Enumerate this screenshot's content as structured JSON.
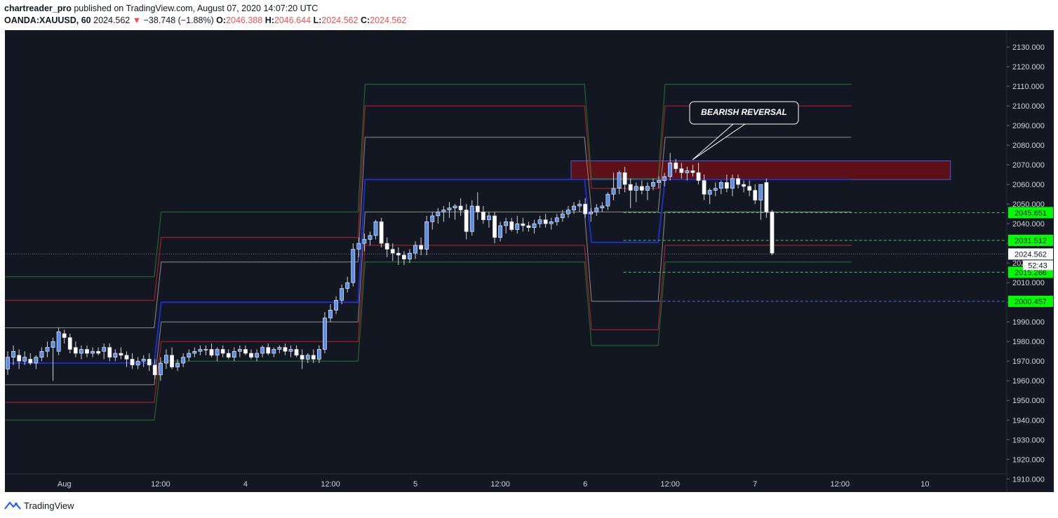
{
  "header": {
    "author": "chartreader_pro",
    "published_text": "published on TradingView.com, August 07, 2020 14:07:20 UTC",
    "symbol": "OANDA:XAUUSD, 60",
    "last": "2024.562",
    "change": "−38.748 (−1.88%)",
    "o_label": "O:",
    "o_val": "2046.388",
    "h_label": "H:",
    "h_val": "2046.644",
    "l_label": "L:",
    "l_val": "2024.562",
    "c_label": "C:",
    "c_val": "2024.562"
  },
  "footer": {
    "brand": "TradingView"
  },
  "colors": {
    "background": "#131722",
    "up": "#5b8ee6",
    "down": "#ffffff",
    "pivot": "#1e2fd6",
    "r_red": "#c0202a",
    "r_gray": "#8c8c8c",
    "r_green": "#1f7a2a",
    "zone": "#6a1018",
    "price_label": "#00ff00"
  },
  "chart_data": {
    "type": "candlestick",
    "ylim": [
      1907,
      2133
    ],
    "y_ticks": [
      "1910.000",
      "1920.000",
      "1930.000",
      "1940.000",
      "1950.000",
      "1960.000",
      "1970.000",
      "1980.000",
      "1990.000",
      "2000.000",
      "2010.000",
      "2020.000",
      "2030.000",
      "2040.000",
      "2050.000",
      "2060.000",
      "2070.000",
      "2080.000",
      "2090.000",
      "2100.000",
      "2110.000",
      "2120.000",
      "2130.000"
    ],
    "x_ticks": [
      {
        "label": "Aug",
        "bar": 10
      },
      {
        "label": "12:00",
        "bar": 27
      },
      {
        "label": "4",
        "bar": 42
      },
      {
        "label": "12:00",
        "bar": 57
      },
      {
        "label": "5",
        "bar": 72
      },
      {
        "label": "12:00",
        "bar": 87
      },
      {
        "label": "6",
        "bar": 102
      },
      {
        "label": "12:00",
        "bar": 117
      },
      {
        "label": "7",
        "bar": 132
      },
      {
        "label": "12:00",
        "bar": 147
      },
      {
        "label": "10",
        "bar": 162
      }
    ],
    "ohlc": [
      [
        1966,
        1975,
        1963,
        1972
      ],
      [
        1972,
        1978,
        1968,
        1975
      ],
      [
        1973,
        1976,
        1966,
        1970
      ],
      [
        1970,
        1975,
        1968,
        1972
      ],
      [
        1971,
        1974,
        1968,
        1969
      ],
      [
        1969,
        1973,
        1966,
        1972
      ],
      [
        1972,
        1977,
        1970,
        1975
      ],
      [
        1975,
        1980,
        1972,
        1977
      ],
      [
        1977,
        1982,
        1960,
        1980
      ],
      [
        1975,
        1987,
        1973,
        1985
      ],
      [
        1984,
        1986,
        1979,
        1982
      ],
      [
        1982,
        1984,
        1974,
        1976
      ],
      [
        1977,
        1980,
        1972,
        1974
      ],
      [
        1974,
        1978,
        1971,
        1976
      ],
      [
        1976,
        1978,
        1972,
        1974
      ],
      [
        1974,
        1977,
        1972,
        1975
      ],
      [
        1975,
        1977,
        1973,
        1974
      ],
      [
        1975,
        1979,
        1971,
        1977
      ],
      [
        1977,
        1979,
        1970,
        1972
      ],
      [
        1972,
        1976,
        1970,
        1974
      ],
      [
        1974,
        1977,
        1971,
        1973
      ],
      [
        1973,
        1975,
        1967,
        1971
      ],
      [
        1971,
        1974,
        1966,
        1968
      ],
      [
        1968,
        1972,
        1966,
        1970
      ],
      [
        1970,
        1973,
        1967,
        1971
      ],
      [
        1971,
        1974,
        1965,
        1968
      ],
      [
        1968,
        1971,
        1961,
        1963
      ],
      [
        1963,
        1972,
        1960,
        1969
      ],
      [
        1969,
        1976,
        1966,
        1973
      ],
      [
        1973,
        1977,
        1966,
        1967
      ],
      [
        1967,
        1971,
        1965,
        1969
      ],
      [
        1969,
        1974,
        1967,
        1972
      ],
      [
        1972,
        1976,
        1970,
        1974
      ],
      [
        1974,
        1977,
        1972,
        1975
      ],
      [
        1975,
        1978,
        1973,
        1976
      ],
      [
        1976,
        1978,
        1973,
        1976
      ],
      [
        1976,
        1979,
        1972,
        1973
      ],
      [
        1973,
        1977,
        1970,
        1976
      ],
      [
        1976,
        1978,
        1972,
        1974
      ],
      [
        1974,
        1976,
        1971,
        1972
      ],
      [
        1972,
        1977,
        1970,
        1975
      ],
      [
        1975,
        1978,
        1972,
        1976
      ],
      [
        1976,
        1978,
        1973,
        1974
      ],
      [
        1974,
        1976,
        1971,
        1972
      ],
      [
        1972,
        1976,
        1970,
        1974
      ],
      [
        1974,
        1978,
        1972,
        1977
      ],
      [
        1977,
        1979,
        1973,
        1974
      ],
      [
        1974,
        1977,
        1972,
        1976
      ],
      [
        1976,
        1978,
        1974,
        1977
      ],
      [
        1977,
        1979,
        1973,
        1975
      ],
      [
        1975,
        1978,
        1972,
        1976
      ],
      [
        1976,
        1978,
        1972,
        1973
      ],
      [
        1973,
        1976,
        1966,
        1971
      ],
      [
        1971,
        1974,
        1969,
        1973
      ],
      [
        1973,
        1976,
        1969,
        1971
      ],
      [
        1971,
        1978,
        1969,
        1976
      ],
      [
        1976,
        1995,
        1974,
        1992
      ],
      [
        1992,
        1999,
        1990,
        1996
      ],
      [
        1996,
        2003,
        1994,
        2001
      ],
      [
        2001,
        2009,
        1999,
        2007
      ],
      [
        2007,
        2013,
        2005,
        2010
      ],
      [
        2010,
        2030,
        2008,
        2027
      ],
      [
        2027,
        2033,
        2023,
        2030
      ],
      [
        2030,
        2035,
        2026,
        2032
      ],
      [
        2032,
        2036,
        2029,
        2034
      ],
      [
        2034,
        2042,
        2032,
        2041
      ],
      [
        2041,
        2043,
        2028,
        2030
      ],
      [
        2030,
        2033,
        2023,
        2027
      ],
      [
        2027,
        2030,
        2021,
        2025
      ],
      [
        2025,
        2028,
        2019,
        2024
      ],
      [
        2024,
        2026,
        2019,
        2022
      ],
      [
        2022,
        2027,
        2020,
        2025
      ],
      [
        2025,
        2031,
        2022,
        2029
      ],
      [
        2029,
        2033,
        2024,
        2027
      ],
      [
        2027,
        2044,
        2024,
        2041
      ],
      [
        2041,
        2046,
        2037,
        2044
      ],
      [
        2044,
        2048,
        2040,
        2046
      ],
      [
        2046,
        2049,
        2041,
        2047
      ],
      [
        2047,
        2051,
        2043,
        2048
      ],
      [
        2048,
        2050,
        2042,
        2049
      ],
      [
        2049,
        2053,
        2044,
        2047
      ],
      [
        2047,
        2050,
        2032,
        2036
      ],
      [
        2036,
        2052,
        2034,
        2049
      ],
      [
        2049,
        2056,
        2042,
        2046
      ],
      [
        2046,
        2049,
        2040,
        2042
      ],
      [
        2042,
        2046,
        2038,
        2044
      ],
      [
        2044,
        2046,
        2030,
        2033
      ],
      [
        2033,
        2041,
        2031,
        2039
      ],
      [
        2039,
        2043,
        2035,
        2041
      ],
      [
        2041,
        2043,
        2036,
        2037
      ],
      [
        2037,
        2044,
        2035,
        2040
      ],
      [
        2040,
        2043,
        2036,
        2039
      ],
      [
        2039,
        2041,
        2036,
        2038
      ],
      [
        2038,
        2042,
        2035,
        2040
      ],
      [
        2040,
        2044,
        2038,
        2042
      ],
      [
        2042,
        2045,
        2038,
        2040
      ],
      [
        2040,
        2043,
        2037,
        2041
      ],
      [
        2041,
        2045,
        2039,
        2043
      ],
      [
        2043,
        2047,
        2041,
        2045
      ],
      [
        2045,
        2049,
        2043,
        2047
      ],
      [
        2047,
        2051,
        2045,
        2049
      ],
      [
        2049,
        2052,
        2046,
        2050
      ],
      [
        2050,
        2053,
        2043,
        2045
      ],
      [
        2045,
        2048,
        2041,
        2046
      ],
      [
        2046,
        2050,
        2044,
        2048
      ],
      [
        2048,
        2051,
        2046,
        2049
      ],
      [
        2049,
        2056,
        2047,
        2055
      ],
      [
        2055,
        2066,
        2052,
        2058
      ],
      [
        2058,
        2067,
        2055,
        2066
      ],
      [
        2066,
        2069,
        2056,
        2060
      ],
      [
        2060,
        2063,
        2048,
        2057
      ],
      [
        2057,
        2061,
        2051,
        2059
      ],
      [
        2059,
        2062,
        2055,
        2057
      ],
      [
        2057,
        2061,
        2052,
        2059
      ],
      [
        2059,
        2063,
        2057,
        2061
      ],
      [
        2061,
        2064,
        2058,
        2062
      ],
      [
        2062,
        2066,
        2059,
        2064
      ],
      [
        2064,
        2076,
        2062,
        2071
      ],
      [
        2071,
        2073,
        2066,
        2068
      ],
      [
        2068,
        2071,
        2063,
        2066
      ],
      [
        2066,
        2069,
        2062,
        2067
      ],
      [
        2067,
        2070,
        2064,
        2066
      ],
      [
        2066,
        2071,
        2060,
        2062
      ],
      [
        2062,
        2065,
        2052,
        2055
      ],
      [
        2055,
        2058,
        2050,
        2057
      ],
      [
        2057,
        2061,
        2054,
        2058
      ],
      [
        2058,
        2062,
        2055,
        2061
      ],
      [
        2061,
        2065,
        2056,
        2058
      ],
      [
        2058,
        2065,
        2054,
        2063
      ],
      [
        2063,
        2065,
        2058,
        2060
      ],
      [
        2060,
        2062,
        2056,
        2059
      ],
      [
        2059,
        2062,
        2054,
        2057
      ],
      [
        2057,
        2060,
        2050,
        2052
      ],
      [
        2052,
        2060,
        2042,
        2060
      ],
      [
        2061,
        2063,
        2043,
        2046
      ],
      [
        2046,
        2047,
        2024,
        2025
      ]
    ],
    "pivot_levels": {
      "breaks": [
        0,
        26,
        62,
        102,
        115
      ],
      "P": [
        1969,
        2000,
        2062.5,
        2030.5,
        2062.5
      ],
      "R1": [
        1987,
        2020.5,
        2084,
        2046,
        2084
      ],
      "R2": [
        2001,
        2033,
        2100,
        2058,
        2100
      ],
      "R3": [
        2013,
        2046,
        2111,
        2063,
        2111
      ],
      "S1": [
        1958,
        1990,
        2046,
        2000.5,
        2046
      ],
      "S2": [
        1949,
        1980,
        2029,
        1986,
        2029
      ],
      "S3": [
        1940,
        1970,
        2020.5,
        1978,
        2020.5
      ]
    },
    "resistance_zone": {
      "from_bar": 100,
      "to_bar": 167,
      "low": 2062.5,
      "high": 2072
    },
    "annotation": "BEARISH REVERSAL",
    "price_labels": [
      {
        "value": "2045.651",
        "level": 2045.651
      },
      {
        "value": "2031.512",
        "level": 2031.512
      },
      {
        "value": "2015.266",
        "level": 2015.266
      },
      {
        "value": "2000.457",
        "level": 2000.457
      }
    ],
    "last_price": {
      "value": "2024.562",
      "countdown": "52:43"
    }
  }
}
